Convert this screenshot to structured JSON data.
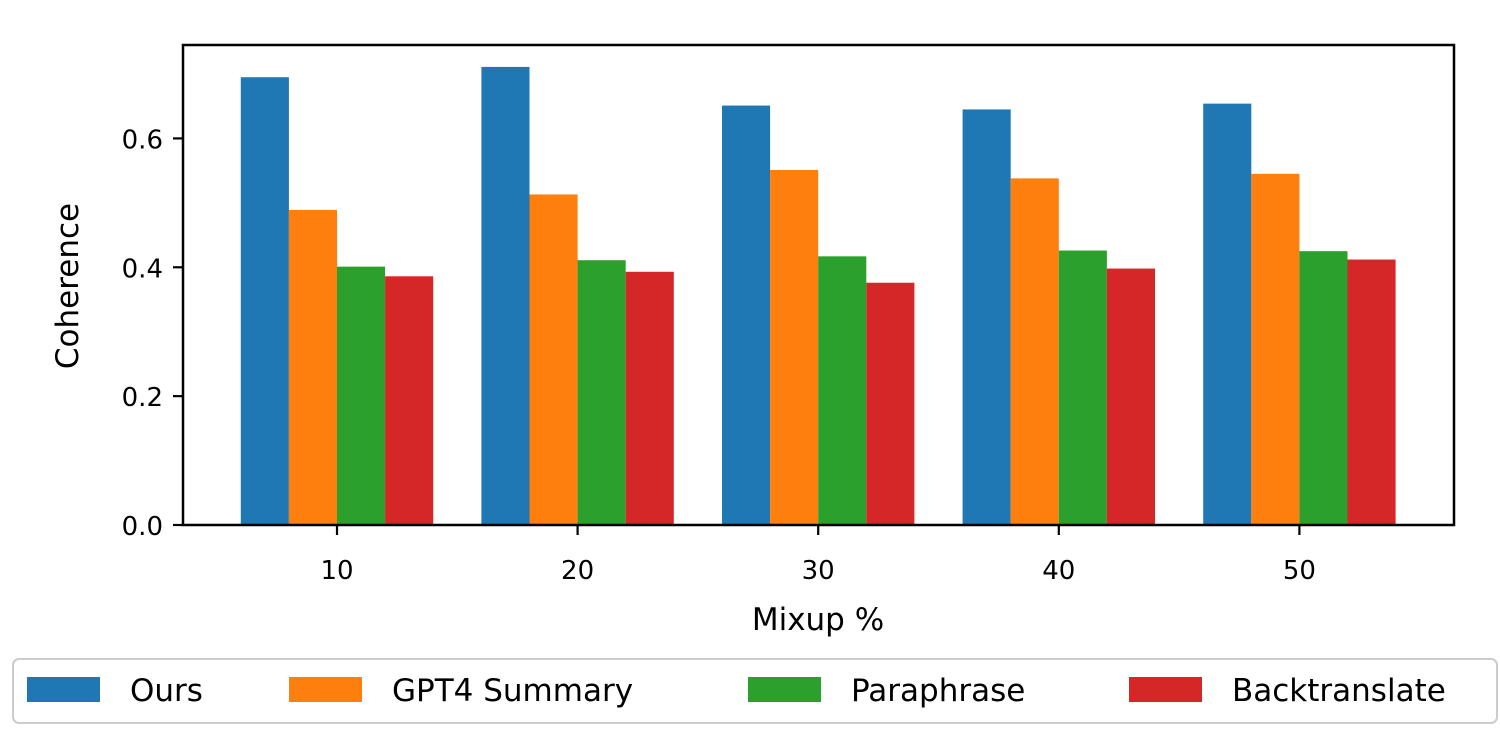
{
  "chart_data": {
    "type": "bar",
    "title": "",
    "xlabel": "Mixup %",
    "ylabel": "Coherence",
    "categories": [
      "10",
      "20",
      "30",
      "40",
      "50"
    ],
    "ylim": [
      0,
      0.745
    ],
    "yticks": [
      "0.0",
      "0.2",
      "0.4",
      "0.6"
    ],
    "grid": false,
    "legend_position": "bottom",
    "series": [
      {
        "name": "Ours",
        "color": "#1f77b4",
        "values": [
          0.695,
          0.711,
          0.651,
          0.645,
          0.654
        ]
      },
      {
        "name": "GPT4 Summary",
        "color": "#ff7f0e",
        "values": [
          0.489,
          0.513,
          0.551,
          0.538,
          0.545
        ]
      },
      {
        "name": "Paraphrase",
        "color": "#2ca02c",
        "values": [
          0.401,
          0.411,
          0.417,
          0.426,
          0.425
        ]
      },
      {
        "name": "Backtranslate",
        "color": "#d62728",
        "values": [
          0.386,
          0.393,
          0.376,
          0.398,
          0.412
        ]
      }
    ]
  }
}
